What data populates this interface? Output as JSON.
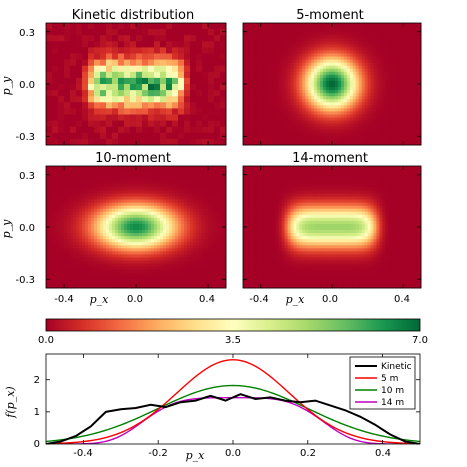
{
  "colors": {
    "colormap": [
      "#a50026",
      "#d73027",
      "#f46d43",
      "#fdae61",
      "#fee08b",
      "#ffffbf",
      "#d9ef8b",
      "#a6d96a",
      "#66bd63",
      "#1a9850",
      "#006837"
    ],
    "kinetic": "#000000",
    "m5": "#ff0000",
    "m10": "#008000",
    "m14": "#bf00bf"
  },
  "heatmaps": [
    {
      "title": "Kinetic distribution",
      "model": "kinetic",
      "sx": 0.24,
      "sy": 0.085,
      "sharpness": 4,
      "peak": 5.8,
      "noisy": true
    },
    {
      "title": "5-moment",
      "model": "m5",
      "sx": 0.1,
      "sy": 0.1,
      "sharpness": 1,
      "peak": 7.0,
      "noisy": false
    },
    {
      "title": "10-moment",
      "model": "m10",
      "sx": 0.15,
      "sy": 0.085,
      "sharpness": 1,
      "peak": 6.5,
      "noisy": false
    },
    {
      "title": "14-moment",
      "model": "m14",
      "sx": 0.22,
      "sy": 0.08,
      "sharpness": 3,
      "peak": 5.0,
      "noisy": false
    }
  ],
  "heatmap_axes": {
    "xlabel": "p_x",
    "ylabel": "p_y",
    "xticks": [
      "-0.4",
      "0.0",
      "0.4"
    ],
    "yticks": [
      "0.3",
      "0.0",
      "-0.3"
    ]
  },
  "colorbar": {
    "ticks": [
      "0.0",
      "3.5",
      "7.0"
    ],
    "min": 0,
    "max": 7
  },
  "chart_data": {
    "type": "line",
    "xlabel": "p_x",
    "ylabel": "f(p_x)",
    "xlim": [
      -0.5,
      0.5
    ],
    "ylim": [
      0,
      2.8
    ],
    "xticks": [
      "-0.4",
      "-0.2",
      "0.0",
      "0.2",
      "0.4"
    ],
    "yticks": [
      "0",
      "1",
      "2"
    ],
    "legend_position": "top-right",
    "series": [
      {
        "name": "Kinetic",
        "color": "#000000",
        "x": [
          -0.5,
          -0.46,
          -0.42,
          -0.38,
          -0.34,
          -0.3,
          -0.26,
          -0.22,
          -0.18,
          -0.14,
          -0.1,
          -0.06,
          -0.02,
          0.02,
          0.06,
          0.1,
          0.14,
          0.18,
          0.22,
          0.26,
          0.3,
          0.34,
          0.38,
          0.42,
          0.46,
          0.5
        ],
        "y": [
          0.0,
          0.08,
          0.25,
          0.55,
          1.0,
          1.08,
          1.12,
          1.22,
          1.15,
          1.3,
          1.35,
          1.5,
          1.35,
          1.55,
          1.4,
          1.45,
          1.35,
          1.3,
          1.35,
          1.2,
          1.05,
          0.85,
          0.6,
          0.3,
          0.08,
          0.0
        ]
      },
      {
        "name": "5 m",
        "color": "#ff0000",
        "sigma": 0.15,
        "peak": 2.62,
        "ybase": 0
      },
      {
        "name": "10 m",
        "color": "#008000",
        "sigma": 0.2,
        "peak": 1.82,
        "ybase": 0
      },
      {
        "name": "14 m",
        "color": "#bf00bf",
        "flat": 0.22,
        "peak": 1.44,
        "ybase": 0
      }
    ]
  }
}
